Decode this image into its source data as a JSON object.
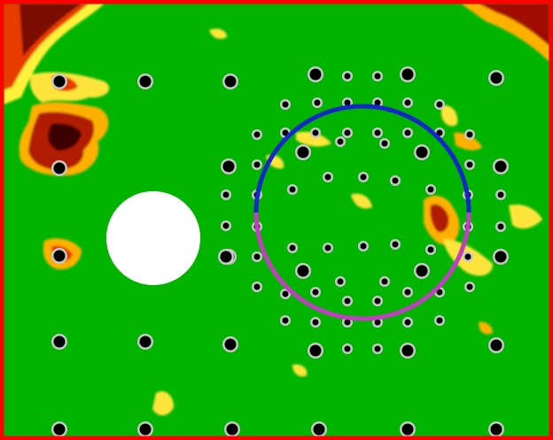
{
  "image": {
    "frame_color": "#ff0000",
    "field_color": "#00b400",
    "hole_color": "#ffffff",
    "pin_outer_color": "#c8c8c8",
    "pin_inner_color": "#000000",
    "circle_upper_color": "#1428c8",
    "circle_lower_color": "#c040c0",
    "heat_colors": [
      "#fff23a",
      "#ffb000",
      "#e83a00",
      "#a01000",
      "#3c0000"
    ]
  }
}
